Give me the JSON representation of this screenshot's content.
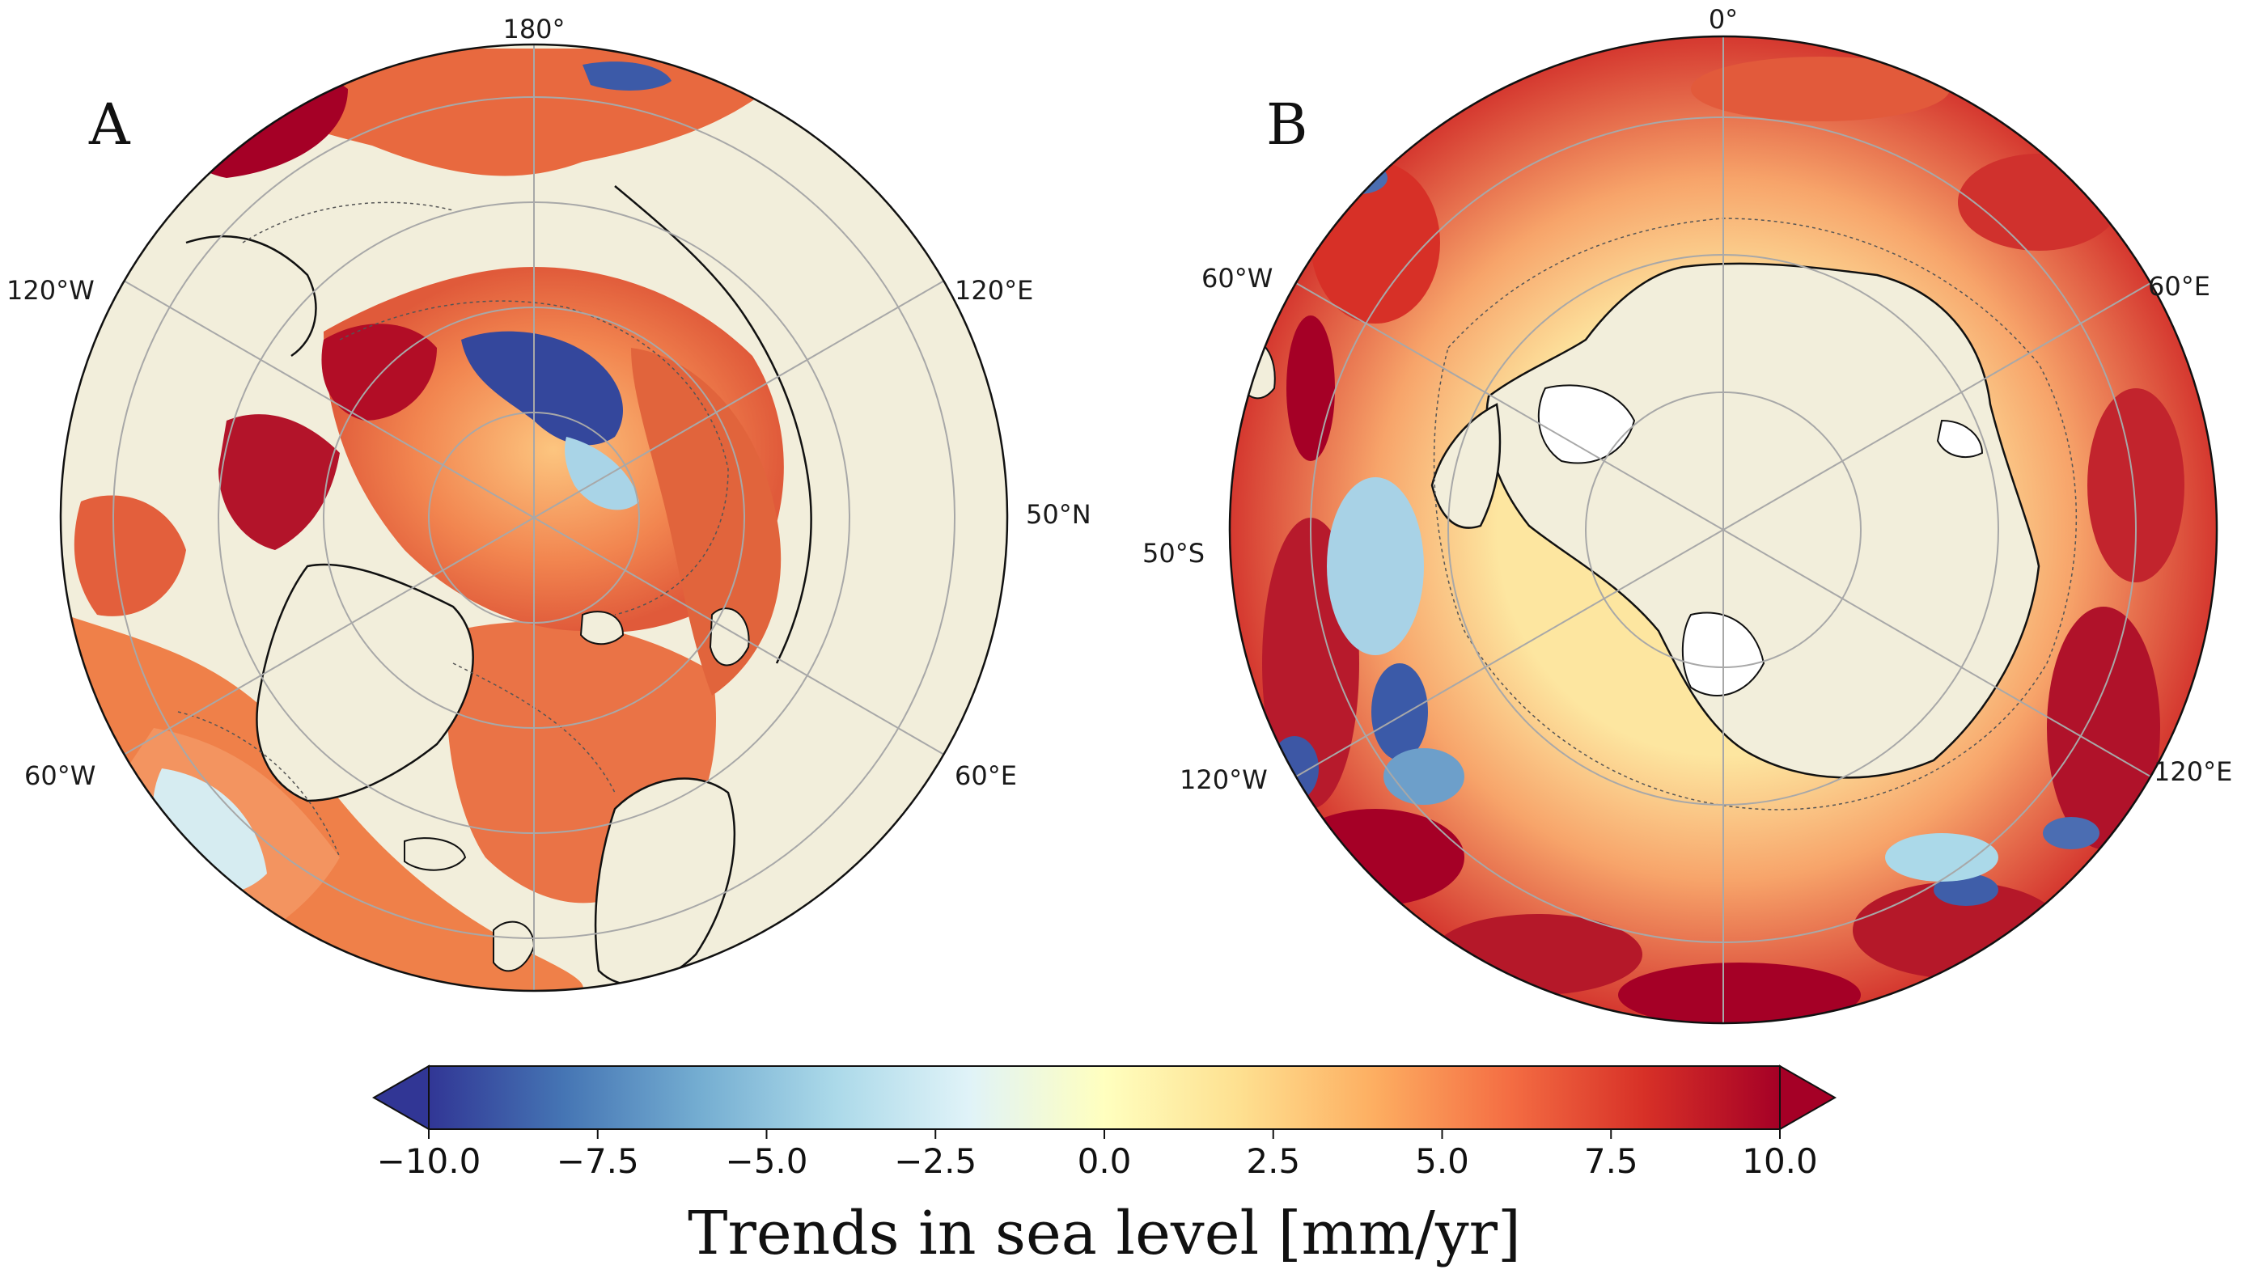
{
  "panels": [
    {
      "letter": "A",
      "hemisphere": "north",
      "lon_labels": [
        "180°",
        "120°W",
        "120°E",
        "60°W",
        "60°E"
      ],
      "lat_label": "50°N"
    },
    {
      "letter": "B",
      "hemisphere": "south",
      "lon_labels": [
        "0°",
        "60°W",
        "60°E",
        "120°W",
        "120°E"
      ],
      "lat_label": "50°S"
    }
  ],
  "colorbar": {
    "label": "Trends in sea level [mm/yr]",
    "ticks": [
      "−10.0",
      "−7.5",
      "−5.0",
      "−2.5",
      "0.0",
      "2.5",
      "5.0",
      "7.5",
      "10.0"
    ],
    "range": [
      -10.0,
      10.0
    ],
    "extend": "both",
    "colormap": "RdYlBu_r",
    "colors": [
      "#313695",
      "#4575b4",
      "#74add1",
      "#abd9e9",
      "#e0f3f8",
      "#ffffbf",
      "#fee090",
      "#fdae61",
      "#f46d43",
      "#d73027",
      "#a50026"
    ]
  },
  "map_colors": {
    "land": "#f2eedb",
    "ocean_base": "#f08a4b",
    "coastline": "#111111",
    "graticule": "#a8a8a8"
  }
}
